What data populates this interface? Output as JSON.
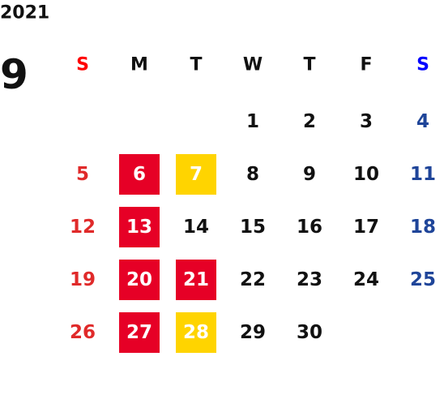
{
  "year": "2021",
  "month": "9",
  "weekdays": [
    {
      "label": "S",
      "color": "#ff0000",
      "day_color": "#e02a2a"
    },
    {
      "label": "M",
      "color": "#111111",
      "day_color": "#111111"
    },
    {
      "label": "T",
      "color": "#111111",
      "day_color": "#111111"
    },
    {
      "label": "W",
      "color": "#111111",
      "day_color": "#111111"
    },
    {
      "label": "T",
      "color": "#111111",
      "day_color": "#111111"
    },
    {
      "label": "F",
      "color": "#111111",
      "day_color": "#111111"
    },
    {
      "label": "S",
      "color": "#0000ff",
      "day_color": "#1f4599"
    }
  ],
  "weeks": [
    [
      null,
      null,
      null,
      {
        "day": 1
      },
      {
        "day": 2
      },
      {
        "day": 3
      },
      {
        "day": 4
      }
    ],
    [
      {
        "day": 5
      },
      {
        "day": 6,
        "highlight": "#e60026"
      },
      {
        "day": 7,
        "highlight": "#ffd400"
      },
      {
        "day": 8
      },
      {
        "day": 9
      },
      {
        "day": 10
      },
      {
        "day": 11
      }
    ],
    [
      {
        "day": 12
      },
      {
        "day": 13,
        "highlight": "#e60026"
      },
      {
        "day": 14
      },
      {
        "day": 15
      },
      {
        "day": 16
      },
      {
        "day": 17
      },
      {
        "day": 18
      }
    ],
    [
      {
        "day": 19
      },
      {
        "day": 20,
        "highlight": "#e60026"
      },
      {
        "day": 21,
        "highlight": "#e60026"
      },
      {
        "day": 22
      },
      {
        "day": 23
      },
      {
        "day": 24
      },
      {
        "day": 25
      }
    ],
    [
      {
        "day": 26
      },
      {
        "day": 27,
        "highlight": "#e60026"
      },
      {
        "day": 28,
        "highlight": "#ffd400"
      },
      {
        "day": 29
      },
      {
        "day": 30
      },
      null,
      null
    ]
  ]
}
